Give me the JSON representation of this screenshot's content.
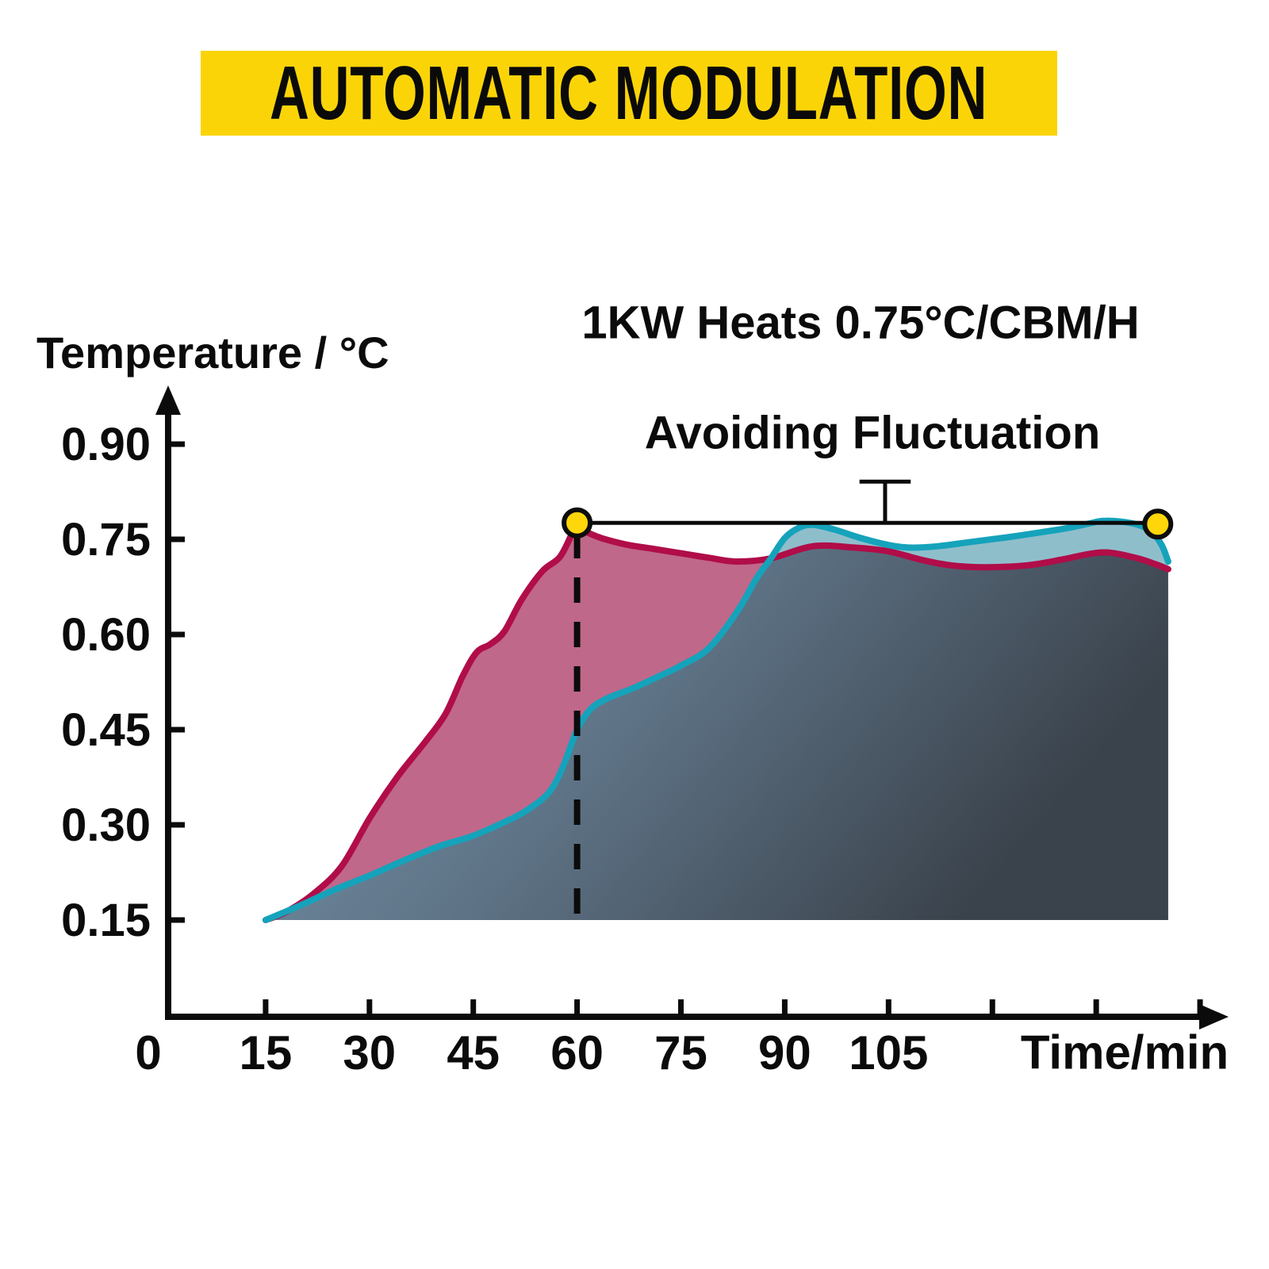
{
  "banner": {
    "label": "AUTOMATIC MODULATION",
    "bg_color": "#FBD408",
    "text_color": "#0a0a0a"
  },
  "chart_data": {
    "type": "area",
    "x_axis": {
      "label": "Time/min",
      "range": [
        0,
        155
      ],
      "tick_marks": [
        15,
        30,
        45,
        60,
        75,
        90,
        105,
        120,
        135,
        150
      ],
      "tick_labels": [
        {
          "t": 0,
          "text": "0"
        },
        {
          "t": 15,
          "text": "15"
        },
        {
          "t": 30,
          "text": "30"
        },
        {
          "t": 45,
          "text": "45"
        },
        {
          "t": 60,
          "text": "60"
        },
        {
          "t": 75,
          "text": "75"
        },
        {
          "t": 90,
          "text": "90"
        },
        {
          "t": 105,
          "text": "105"
        }
      ]
    },
    "y_axis": {
      "label": "Temperature / °C",
      "range": [
        0,
        0.95
      ],
      "ticks": [
        {
          "v": 0.15,
          "text": "0.15"
        },
        {
          "v": 0.3,
          "text": "0.30"
        },
        {
          "v": 0.45,
          "text": "0.45"
        },
        {
          "v": 0.6,
          "text": "0.60"
        },
        {
          "v": 0.75,
          "text": "0.75"
        },
        {
          "v": 0.9,
          "text": "0.90"
        }
      ]
    },
    "annotations": {
      "heating_rate": "1KW Heats 0.75°C/CBM/H",
      "fluctuation": "Avoiding Fluctuation"
    },
    "grid": false,
    "legend": false,
    "cross_t": 88,
    "baseline_temp": 0.15,
    "reference_line": {
      "temp": 0.776,
      "from_t": 60,
      "to_t": 143.9
    },
    "fluctuation_connector": {
      "t": 104.5,
      "top_temp": 0.841,
      "bar_halfwidth_min": 3.7
    },
    "dashed_marker": {
      "t": 60,
      "from_temp": 0.76,
      "to_temp": 0.156
    },
    "markers": [
      {
        "t": 60,
        "temp": 0.776
      },
      {
        "t": 143.9,
        "temp": 0.774
      }
    ],
    "marker_color": "#FFD60A",
    "series": [
      {
        "name": "red_series",
        "line_color": "#B00D49",
        "fill_color": "#C0688A",
        "points": [
          [
            15,
            0.15
          ],
          [
            18,
            0.163
          ],
          [
            22,
            0.192
          ],
          [
            26,
            0.235
          ],
          [
            30,
            0.31
          ],
          [
            34,
            0.375
          ],
          [
            38,
            0.43
          ],
          [
            41,
            0.475
          ],
          [
            43.5,
            0.535
          ],
          [
            45.5,
            0.572
          ],
          [
            47.5,
            0.585
          ],
          [
            49.5,
            0.605
          ],
          [
            52,
            0.655
          ],
          [
            55,
            0.7
          ],
          [
            57.5,
            0.722
          ],
          [
            59.3,
            0.76
          ],
          [
            60,
            0.776
          ],
          [
            61,
            0.764
          ],
          [
            63.5,
            0.752
          ],
          [
            67,
            0.742
          ],
          [
            71,
            0.735
          ],
          [
            75,
            0.728
          ],
          [
            79,
            0.721
          ],
          [
            83,
            0.715
          ],
          [
            88,
            0.72
          ],
          [
            94,
            0.739
          ],
          [
            100,
            0.737
          ],
          [
            105,
            0.731
          ],
          [
            110,
            0.717
          ],
          [
            114,
            0.709
          ],
          [
            119,
            0.706
          ],
          [
            125,
            0.709
          ],
          [
            130,
            0.718
          ],
          [
            134,
            0.727
          ],
          [
            137,
            0.729
          ],
          [
            141,
            0.72
          ],
          [
            143.5,
            0.711
          ],
          [
            145.4,
            0.703
          ]
        ]
      },
      {
        "name": "teal_series",
        "line_color": "#15A3BB",
        "fill_color": "#8FBECB",
        "points": [
          [
            15,
            0.15
          ],
          [
            20,
            0.173
          ],
          [
            25,
            0.198
          ],
          [
            30,
            0.22
          ],
          [
            35,
            0.244
          ],
          [
            40,
            0.266
          ],
          [
            45,
            0.283
          ],
          [
            50,
            0.307
          ],
          [
            53,
            0.325
          ],
          [
            56,
            0.352
          ],
          [
            58,
            0.393
          ],
          [
            60,
            0.45
          ],
          [
            62,
            0.483
          ],
          [
            64.5,
            0.5
          ],
          [
            68,
            0.515
          ],
          [
            72,
            0.535
          ],
          [
            75,
            0.551
          ],
          [
            79,
            0.578
          ],
          [
            83,
            0.634
          ],
          [
            86,
            0.69
          ],
          [
            88,
            0.72
          ],
          [
            90,
            0.752
          ],
          [
            92,
            0.768
          ],
          [
            94,
            0.773
          ],
          [
            97,
            0.766
          ],
          [
            101,
            0.752
          ],
          [
            105,
            0.741
          ],
          [
            108,
            0.737
          ],
          [
            112,
            0.739
          ],
          [
            117,
            0.746
          ],
          [
            122,
            0.753
          ],
          [
            127,
            0.761
          ],
          [
            131,
            0.768
          ],
          [
            134,
            0.775
          ],
          [
            136,
            0.779
          ],
          [
            138.5,
            0.778
          ],
          [
            141,
            0.773
          ],
          [
            143,
            0.762
          ],
          [
            144.5,
            0.74
          ],
          [
            145.4,
            0.715
          ]
        ]
      }
    ],
    "overlap_gradient": [
      "#7B99AF",
      "#5E7386",
      "#3A424B"
    ]
  }
}
